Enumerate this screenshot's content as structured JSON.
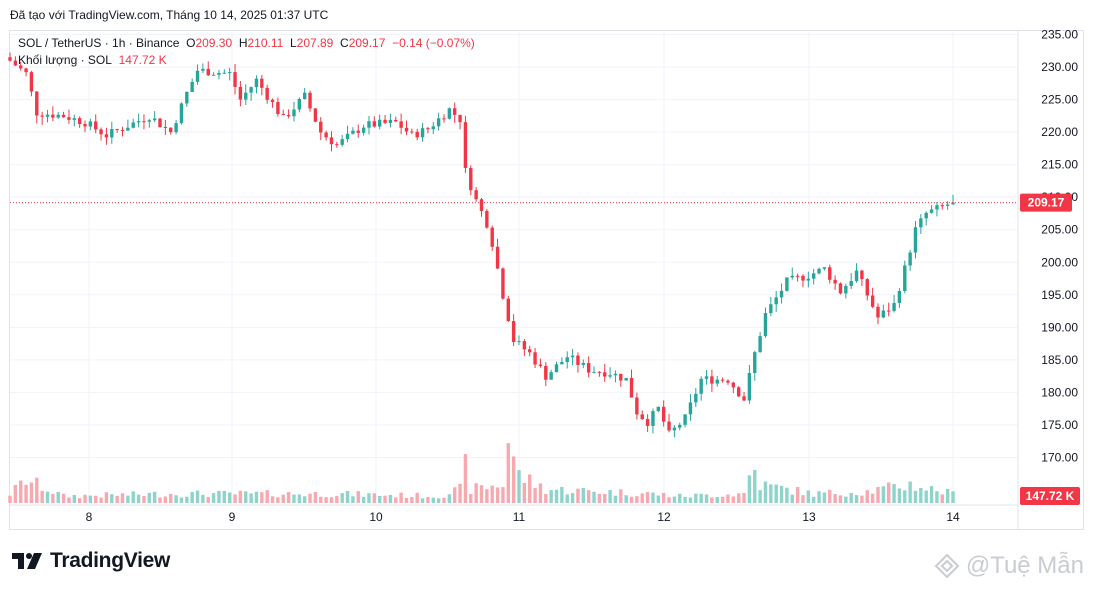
{
  "header": {
    "attribution": "Đã tạo với TradingView.com, Tháng 10 14, 2025 01:37 UTC"
  },
  "legend": {
    "symbol_line": "SOL / TetherUS · 1h · Binance",
    "o_label": "O",
    "o": "209.30",
    "h_label": "H",
    "h": "210.11",
    "l_label": "L",
    "l": "207.89",
    "c_label": "C",
    "c": "209.17",
    "change": "−0.14 (−0.07%)",
    "volume_label": "Khối lượng · SOL",
    "volume": "147.72 K"
  },
  "colors": {
    "up": "#26a69a",
    "down": "#f23645",
    "up_vol": "#8fd4cb",
    "down_vol": "#f7a9af",
    "grid": "#f0f3fa",
    "text": "#131722"
  },
  "footer": {
    "brand": "TradingView",
    "watermark": "@Tuệ Mẫn"
  },
  "chart_data": {
    "type": "candlestick",
    "interval": "1h",
    "y_axis_side": "right",
    "ylim": [
      163,
      238
    ],
    "y_ticks": [
      "170.00",
      "175.00",
      "180.00",
      "185.00",
      "190.00",
      "195.00",
      "200.00",
      "205.00",
      "210.00",
      "215.00",
      "220.00",
      "225.00",
      "230.00",
      "235.00"
    ],
    "x_ticks": [
      "8",
      "9",
      "10",
      "11",
      "12",
      "13",
      "14"
    ],
    "last_price": "209.17",
    "last_volume": "147.72 K",
    "anchors": [
      {
        "t": 0.0,
        "p": 231.0
      },
      {
        "t": 3.0,
        "p": 229.0
      },
      {
        "t": 5.0,
        "p": 223.0
      },
      {
        "t": 10.0,
        "p": 222.5
      },
      {
        "t": 14.0,
        "p": 221.5
      },
      {
        "t": 18.0,
        "p": 219.5
      },
      {
        "t": 22.0,
        "p": 221.0
      },
      {
        "t": 26.0,
        "p": 222.5
      },
      {
        "t": 30.0,
        "p": 220.0
      },
      {
        "t": 33.0,
        "p": 226.0
      },
      {
        "t": 35.0,
        "p": 229.5
      },
      {
        "t": 41.0,
        "p": 229.0
      },
      {
        "t": 43.0,
        "p": 225.0
      },
      {
        "t": 46.0,
        "p": 228.0
      },
      {
        "t": 51.0,
        "p": 222.0
      },
      {
        "t": 55.0,
        "p": 225.5
      },
      {
        "t": 58.0,
        "p": 220.0
      },
      {
        "t": 61.0,
        "p": 218.0
      },
      {
        "t": 66.0,
        "p": 221.0
      },
      {
        "t": 72.0,
        "p": 221.5
      },
      {
        "t": 75.0,
        "p": 219.5
      },
      {
        "t": 78.0,
        "p": 220.5
      },
      {
        "t": 82.0,
        "p": 223.5
      },
      {
        "t": 84.0,
        "p": 222.0
      },
      {
        "t": 85.0,
        "p": 214.0
      },
      {
        "t": 87.0,
        "p": 209.5
      },
      {
        "t": 89.0,
        "p": 206.0
      },
      {
        "t": 90.0,
        "p": 203.0
      },
      {
        "t": 92.0,
        "p": 195.0
      },
      {
        "t": 94.0,
        "p": 188.0
      },
      {
        "t": 97.0,
        "p": 186.0
      },
      {
        "t": 100.0,
        "p": 182.5
      },
      {
        "t": 104.0,
        "p": 185.5
      },
      {
        "t": 108.0,
        "p": 183.5
      },
      {
        "t": 112.0,
        "p": 183.0
      },
      {
        "t": 115.0,
        "p": 182.0
      },
      {
        "t": 117.0,
        "p": 177.0
      },
      {
        "t": 119.0,
        "p": 175.5
      },
      {
        "t": 121.0,
        "p": 177.5
      },
      {
        "t": 123.0,
        "p": 173.5
      },
      {
        "t": 126.0,
        "p": 176.0
      },
      {
        "t": 129.0,
        "p": 182.0
      },
      {
        "t": 134.0,
        "p": 182.0
      },
      {
        "t": 137.0,
        "p": 179.0
      },
      {
        "t": 139.0,
        "p": 186.0
      },
      {
        "t": 141.0,
        "p": 192.0
      },
      {
        "t": 145.0,
        "p": 197.0
      },
      {
        "t": 149.0,
        "p": 198.0
      },
      {
        "t": 152.0,
        "p": 199.0
      },
      {
        "t": 155.0,
        "p": 195.5
      },
      {
        "t": 158.0,
        "p": 198.5
      },
      {
        "t": 160.0,
        "p": 195.0
      },
      {
        "t": 162.0,
        "p": 191.5
      },
      {
        "t": 165.0,
        "p": 193.5
      },
      {
        "t": 167.0,
        "p": 199.0
      },
      {
        "t": 169.0,
        "p": 205.0
      },
      {
        "t": 171.0,
        "p": 207.5
      },
      {
        "t": 174.0,
        "p": 208.5
      },
      {
        "t": 176.0,
        "p": 209.3
      }
    ],
    "volume_anchors": [
      {
        "t": 0,
        "v": 2
      },
      {
        "t": 3,
        "v": 5
      },
      {
        "t": 10,
        "v": 1.5
      },
      {
        "t": 30,
        "v": 2
      },
      {
        "t": 45,
        "v": 2
      },
      {
        "t": 60,
        "v": 2
      },
      {
        "t": 80,
        "v": 1.5
      },
      {
        "t": 84,
        "v": 3
      },
      {
        "t": 85,
        "v": 8
      },
      {
        "t": 86,
        "v": 3
      },
      {
        "t": 92,
        "v": 4
      },
      {
        "t": 93,
        "v": 14
      },
      {
        "t": 94,
        "v": 10
      },
      {
        "t": 95,
        "v": 6
      },
      {
        "t": 100,
        "v": 3
      },
      {
        "t": 120,
        "v": 2
      },
      {
        "t": 125,
        "v": 1.5
      },
      {
        "t": 137,
        "v": 2
      },
      {
        "t": 138,
        "v": 6
      },
      {
        "t": 139,
        "v": 7
      },
      {
        "t": 140,
        "v": 4
      },
      {
        "t": 150,
        "v": 2
      },
      {
        "t": 160,
        "v": 2.5
      },
      {
        "t": 168,
        "v": 4
      },
      {
        "t": 172,
        "v": 3
      },
      {
        "t": 176,
        "v": 2
      }
    ]
  }
}
